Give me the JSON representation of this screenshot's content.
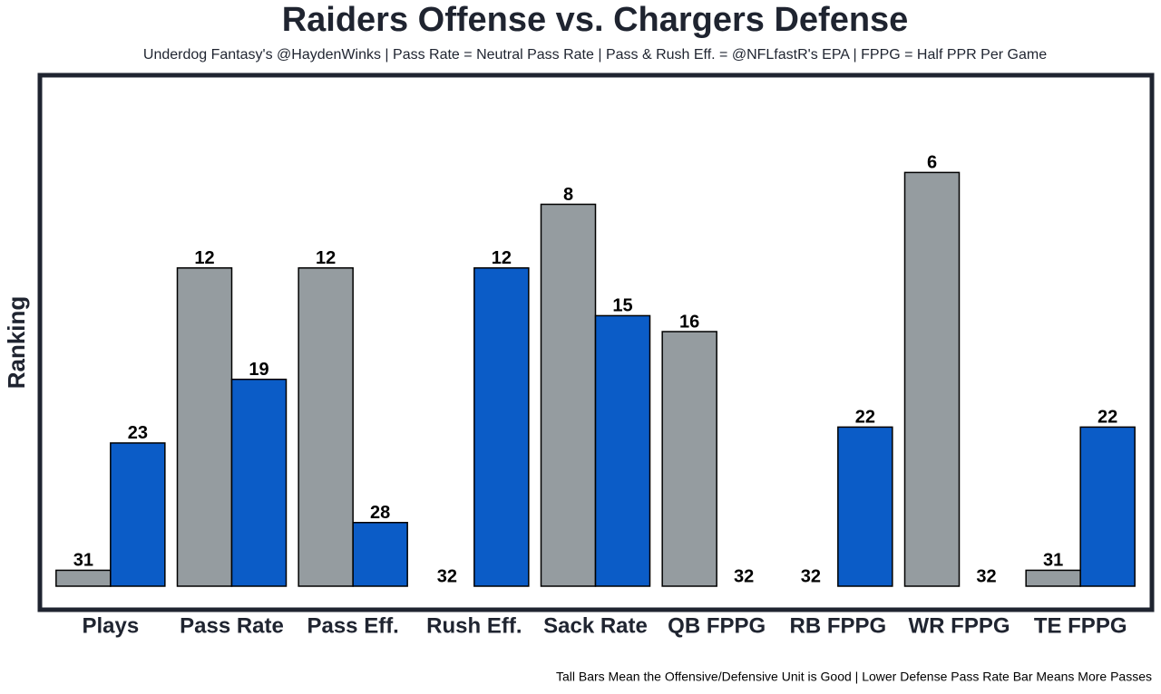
{
  "chart_data": {
    "type": "bar",
    "title": "Raiders Offense vs. Chargers Defense",
    "subtitle": "Underdog Fantasy's @HaydenWinks | Pass Rate = Neutral Pass Rate | Pass & Rush Eff. = @NFLfastR's EPA | FPPG = Half PPR Per Game",
    "y_label": "Ranking",
    "note": "Tall Bars Mean the Offensive/Defensive Unit is Good | Lower Defense Pass Rate Bar Means More Passes",
    "categories": [
      "Plays",
      "Pass Rate",
      "Pass Eff.",
      "Rush Eff.",
      "Sack Rate",
      "QB FPPG",
      "RB FPPG",
      "WR FPPG",
      "TE FPPG"
    ],
    "series": [
      {
        "color": "#959ca0",
        "values": [
          31,
          12,
          12,
          32,
          8,
          16,
          32,
          6,
          31
        ]
      },
      {
        "color": "#0b5cc7",
        "values": [
          23,
          19,
          28,
          12,
          15,
          32,
          22,
          32,
          22
        ]
      }
    ],
    "ylim": [
      32,
      0
    ]
  }
}
